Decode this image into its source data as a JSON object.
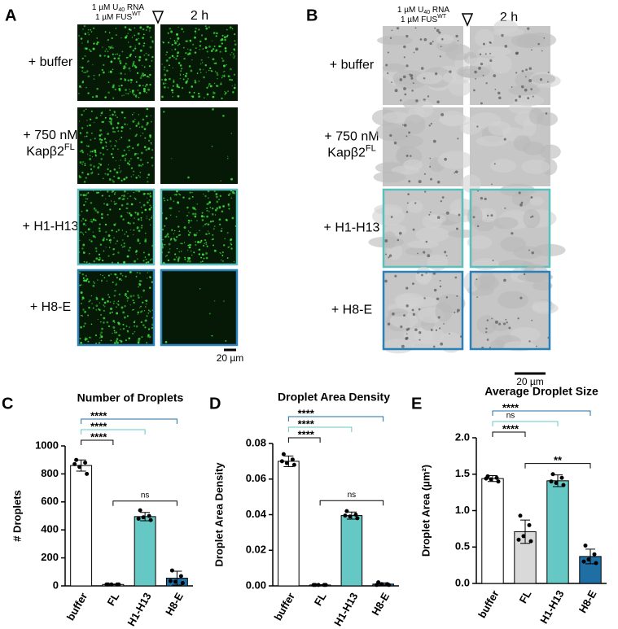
{
  "image_panels": [
    {
      "label": "A",
      "header": {
        "line1_pre": "1 µM U",
        "line1_sub": "40",
        "line1_post": " RNA",
        "line2_pre": "1 µM FUS",
        "line2_sup": "WT"
      },
      "time": "2 h",
      "rows": [
        {
          "text": "+ buffer"
        },
        {
          "text": "+ 750 nM",
          "line2": "Kapβ2",
          "sup": "FL"
        },
        {
          "text": "+ H1-H13"
        },
        {
          "text": "+ H8-E"
        }
      ],
      "scale_bar": "20 µm"
    },
    {
      "label": "B",
      "header": {
        "line1_pre": "1 µM U",
        "line1_sub": "40",
        "line1_post": " RNA",
        "line2_pre": "1 µM FUS",
        "line2_sup": "WT"
      },
      "time": "2 h",
      "rows": [
        {
          "text": "+ buffer"
        },
        {
          "text": "+ 750 nM",
          "line2": "Kapβ2",
          "sup": "FL"
        },
        {
          "text": "+ H1-H13"
        },
        {
          "text": "+ H8-E"
        }
      ],
      "scale_bar": "20 µm"
    }
  ],
  "chart_data": [
    {
      "type": "bar",
      "panel_label": "C",
      "title": "Number of Droplets",
      "y_label": "# Droplets",
      "categories": [
        "buffer",
        "FL",
        "H1-H13",
        "H8-E"
      ],
      "colors": [
        "#ffffff",
        "#d9d9d9",
        "#66c8c4",
        "#1f6fa5"
      ],
      "values": [
        860,
        10,
        495,
        55
      ],
      "error": [
        40,
        3,
        30,
        50
      ],
      "points": [
        [
          900,
          880,
          850,
          800,
          870
        ],
        [
          10,
          10,
          10,
          10,
          10
        ],
        [
          540,
          500,
          490,
          470,
          480
        ],
        [
          110,
          70,
          30,
          20,
          35
        ]
      ],
      "ylim": [
        0,
        1000
      ],
      "yticks": [
        0,
        200,
        400,
        600,
        800,
        1000
      ],
      "comparisons": [
        {
          "from": "buffer",
          "to": "FL",
          "label": "****",
          "color": "#000000"
        },
        {
          "from": "buffer",
          "to": "H1-H13",
          "label": "****",
          "color": "#66c8c4"
        },
        {
          "from": "buffer",
          "to": "H8-E",
          "label": "****",
          "color": "#1f6fa5"
        },
        {
          "from": "FL",
          "to": "H8-E",
          "label": "ns",
          "color": "#000000"
        }
      ]
    },
    {
      "type": "bar",
      "panel_label": "D",
      "title": "Droplet Area Density",
      "y_label": "Droplet Area Density",
      "categories": [
        "buffer",
        "FL",
        "H1-H13",
        "H8-E"
      ],
      "colors": [
        "#ffffff",
        "#d9d9d9",
        "#66c8c4",
        "#1f6fa5"
      ],
      "values": [
        0.07,
        0.0005,
        0.0395,
        0.001
      ],
      "error": [
        0.003,
        0.0002,
        0.002,
        0.0007
      ],
      "points": [
        [
          0.074,
          0.071,
          0.069,
          0.068,
          0.07
        ],
        [
          0.0005,
          0.0005,
          0.0005,
          0.0005,
          0.0005
        ],
        [
          0.042,
          0.04,
          0.039,
          0.038,
          0.0395
        ],
        [
          0.002,
          0.001,
          0.001,
          0.0005,
          0.0005
        ]
      ],
      "ylim": [
        0,
        0.08
      ],
      "yticks": [
        {
          "value": 0,
          "label": "0.00"
        },
        0.02,
        0.04,
        0.06,
        0.08
      ],
      "comparisons": [
        {
          "from": "buffer",
          "to": "FL",
          "label": "****",
          "color": "#000000"
        },
        {
          "from": "buffer",
          "to": "H1-H13",
          "label": "****",
          "color": "#66c8c4"
        },
        {
          "from": "buffer",
          "to": "H8-E",
          "label": "****",
          "color": "#1f6fa5"
        },
        {
          "from": "FL",
          "to": "H8-E",
          "label": "ns",
          "color": "#000000"
        }
      ]
    },
    {
      "type": "bar",
      "panel_label": "E",
      "title": "Average Droplet Size",
      "y_label": "Droplet Area (µm²)",
      "categories": [
        "buffer",
        "FL",
        "H1-H13",
        "H8-E"
      ],
      "colors": [
        "#ffffff",
        "#d9d9d9",
        "#66c8c4",
        "#1f6fa5"
      ],
      "values": [
        1.44,
        0.71,
        1.41,
        0.37
      ],
      "error": [
        0.04,
        0.16,
        0.08,
        0.1
      ],
      "points": [
        [
          1.47,
          1.45,
          1.43,
          1.4,
          1.44
        ],
        [
          0.93,
          0.8,
          0.65,
          0.58,
          0.6
        ],
        [
          1.5,
          1.45,
          1.38,
          1.35,
          1.4
        ],
        [
          0.52,
          0.4,
          0.33,
          0.28,
          0.3
        ]
      ],
      "ylim": [
        0,
        2
      ],
      "yticks": [
        {
          "value": 0,
          "label": "0.0"
        },
        0.5,
        {
          "value": 1,
          "label": "1.0"
        },
        1.5,
        {
          "value": 2,
          "label": "2.0"
        }
      ],
      "comparisons": [
        {
          "from": "buffer",
          "to": "FL",
          "label": "****",
          "color": "#000000"
        },
        {
          "from": "buffer",
          "to": "H1-H13",
          "label": "ns",
          "color": "#66c8c4"
        },
        {
          "from": "buffer",
          "to": "H8-E",
          "label": "****",
          "color": "#1f6fa5"
        },
        {
          "from": "FL",
          "to": "H8-E",
          "label": "**",
          "color": "#000000"
        }
      ]
    }
  ]
}
